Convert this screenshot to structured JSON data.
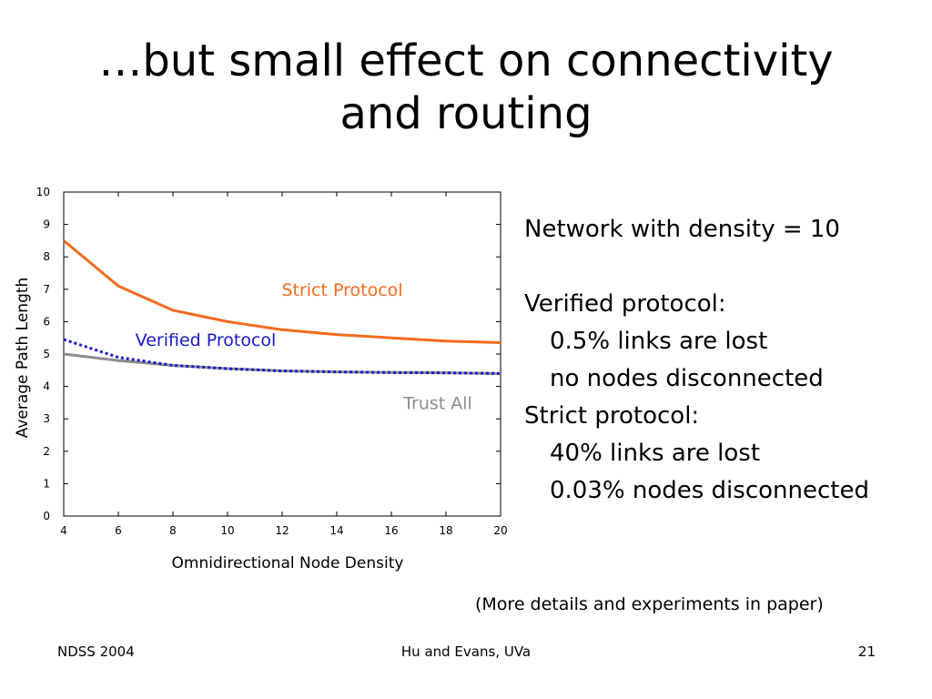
{
  "slide": {
    "title_line1": "…but small effect on connectivity",
    "title_line2": "and routing"
  },
  "notes": {
    "line1": "Network with density = 10",
    "line2": "Verified protocol:",
    "line3": "0.5% links are lost",
    "line4": "no nodes disconnected",
    "line5": "Strict protocol:",
    "line6": "40% links are lost",
    "line7": "0.03% nodes disconnected",
    "details": "(More details and experiments in paper)"
  },
  "footer": {
    "left": "NDSS 2004",
    "center": "Hu and Evans, UVa",
    "right": "21"
  },
  "chart_data": {
    "type": "line",
    "title": "",
    "xlabel": "Omnidirectional Node Density",
    "ylabel": "Average Path Length",
    "xlim": [
      4,
      20
    ],
    "ylim": [
      0,
      10
    ],
    "xticks": [
      4,
      6,
      8,
      10,
      12,
      14,
      16,
      18,
      20
    ],
    "yticks": [
      0,
      1,
      2,
      3,
      4,
      5,
      6,
      7,
      8,
      9,
      10
    ],
    "grid": false,
    "series": [
      {
        "name": "Strict Protocol",
        "color": "#f26b1d",
        "style": "solid",
        "x": [
          4,
          6,
          8,
          10,
          12,
          14,
          16,
          18,
          20
        ],
        "y": [
          8.5,
          7.1,
          6.35,
          6.0,
          5.75,
          5.6,
          5.5,
          5.4,
          5.35
        ]
      },
      {
        "name": "Verified Protocol",
        "color": "#1a1acc",
        "style": "dotted",
        "x": [
          4,
          6,
          8,
          10,
          12,
          14,
          16,
          18,
          20
        ],
        "y": [
          5.45,
          4.9,
          4.65,
          4.55,
          4.48,
          4.45,
          4.43,
          4.42,
          4.4
        ]
      },
      {
        "name": "Trust All",
        "color": "#8c8c8c",
        "style": "solid",
        "x": [
          4,
          6,
          8,
          10,
          12,
          14,
          16,
          18,
          20
        ],
        "y": [
          5.0,
          4.8,
          4.65,
          4.55,
          4.48,
          4.45,
          4.43,
          4.42,
          4.4
        ]
      }
    ],
    "series_labels": [
      {
        "text": "Strict Protocol",
        "x": 14.2,
        "y": 6.8,
        "color": "#f26b1d"
      },
      {
        "text": "Verified Protocol",
        "x": 9.2,
        "y": 5.25,
        "color": "#1a1acc"
      },
      {
        "text": "Trust All",
        "x": 17.7,
        "y": 3.3,
        "color": "#8c8c8c"
      }
    ]
  }
}
